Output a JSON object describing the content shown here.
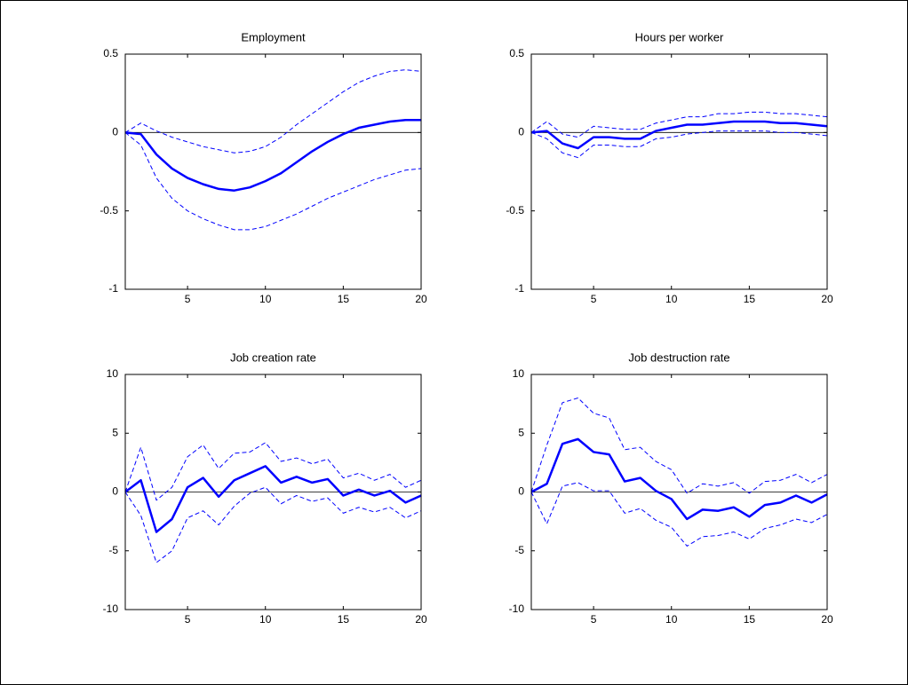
{
  "chart_data": [
    {
      "type": "line",
      "title": "Employment",
      "x": [
        1,
        2,
        3,
        4,
        5,
        6,
        7,
        8,
        9,
        10,
        11,
        12,
        13,
        14,
        15,
        16,
        17,
        18,
        19,
        20
      ],
      "xlim": [
        1,
        20
      ],
      "xticks": [
        5,
        10,
        15,
        20
      ],
      "ylim": [
        -1,
        0.5
      ],
      "yticks": [
        -1,
        -0.5,
        0,
        0.5
      ],
      "zero_line": true,
      "series": [
        {
          "color": "#0000ff",
          "linestyle": "solid",
          "values": [
            0,
            -0.01,
            -0.14,
            -0.23,
            -0.29,
            -0.33,
            -0.36,
            -0.37,
            -0.35,
            -0.31,
            -0.26,
            -0.19,
            -0.12,
            -0.06,
            -0.01,
            0.03,
            0.05,
            0.07,
            0.08,
            0.08
          ]
        },
        {
          "color": "#0000ff",
          "linestyle": "dashed",
          "values": [
            0,
            0.06,
            0.01,
            -0.03,
            -0.06,
            -0.09,
            -0.11,
            -0.13,
            -0.12,
            -0.09,
            -0.03,
            0.05,
            0.12,
            0.19,
            0.26,
            0.32,
            0.36,
            0.39,
            0.4,
            0.39
          ]
        },
        {
          "color": "#0000ff",
          "linestyle": "dashed",
          "values": [
            0,
            -0.08,
            -0.29,
            -0.42,
            -0.5,
            -0.55,
            -0.59,
            -0.62,
            -0.62,
            -0.6,
            -0.56,
            -0.52,
            -0.47,
            -0.42,
            -0.38,
            -0.34,
            -0.3,
            -0.27,
            -0.24,
            -0.23
          ]
        }
      ]
    },
    {
      "type": "line",
      "title": "Hours per worker",
      "x": [
        1,
        2,
        3,
        4,
        5,
        6,
        7,
        8,
        9,
        10,
        11,
        12,
        13,
        14,
        15,
        16,
        17,
        18,
        19,
        20
      ],
      "xlim": [
        1,
        20
      ],
      "xticks": [
        5,
        10,
        15,
        20
      ],
      "ylim": [
        -1,
        0.5
      ],
      "yticks": [
        -1,
        -0.5,
        0,
        0.5
      ],
      "zero_line": true,
      "series": [
        {
          "color": "#0000ff",
          "linestyle": "solid",
          "values": [
            0,
            0.01,
            -0.07,
            -0.1,
            -0.03,
            -0.03,
            -0.04,
            -0.04,
            0.01,
            0.03,
            0.05,
            0.05,
            0.06,
            0.07,
            0.07,
            0.07,
            0.06,
            0.06,
            0.05,
            0.04
          ]
        },
        {
          "color": "#0000ff",
          "linestyle": "dashed",
          "values": [
            0,
            0.07,
            -0.01,
            -0.03,
            0.04,
            0.03,
            0.02,
            0.02,
            0.06,
            0.08,
            0.1,
            0.1,
            0.12,
            0.12,
            0.13,
            0.13,
            0.12,
            0.12,
            0.11,
            0.1
          ]
        },
        {
          "color": "#0000ff",
          "linestyle": "dashed",
          "values": [
            0,
            -0.04,
            -0.13,
            -0.16,
            -0.08,
            -0.08,
            -0.09,
            -0.09,
            -0.04,
            -0.03,
            -0.01,
            0,
            0.01,
            0.01,
            0.01,
            0.01,
            0,
            0,
            -0.01,
            -0.02
          ]
        }
      ]
    },
    {
      "type": "line",
      "title": "Job creation rate",
      "x": [
        1,
        2,
        3,
        4,
        5,
        6,
        7,
        8,
        9,
        10,
        11,
        12,
        13,
        14,
        15,
        16,
        17,
        18,
        19,
        20
      ],
      "xlim": [
        1,
        20
      ],
      "xticks": [
        5,
        10,
        15,
        20
      ],
      "ylim": [
        -10,
        10
      ],
      "yticks": [
        -10,
        -5,
        0,
        5,
        10
      ],
      "zero_line": true,
      "series": [
        {
          "color": "#0000ff",
          "linestyle": "solid",
          "values": [
            0,
            1,
            -3.4,
            -2.3,
            0.4,
            1.2,
            -0.4,
            1,
            1.6,
            2.2,
            0.8,
            1.3,
            0.8,
            1.1,
            -0.3,
            0.2,
            -0.3,
            0.1,
            -0.9,
            -0.3
          ]
        },
        {
          "color": "#0000ff",
          "linestyle": "dashed",
          "values": [
            0,
            3.8,
            -0.7,
            0.4,
            3,
            4,
            2,
            3.3,
            3.4,
            4.2,
            2.6,
            2.9,
            2.4,
            2.8,
            1.2,
            1.6,
            1,
            1.5,
            0.4,
            1
          ]
        },
        {
          "color": "#0000ff",
          "linestyle": "dashed",
          "values": [
            0,
            -2,
            -6,
            -5,
            -2.2,
            -1.6,
            -2.8,
            -1.2,
            -0.1,
            0.4,
            -1,
            -0.3,
            -0.8,
            -0.5,
            -1.8,
            -1.3,
            -1.7,
            -1.3,
            -2.2,
            -1.6
          ]
        }
      ]
    },
    {
      "type": "line",
      "title": "Job destruction rate",
      "x": [
        1,
        2,
        3,
        4,
        5,
        6,
        7,
        8,
        9,
        10,
        11,
        12,
        13,
        14,
        15,
        16,
        17,
        18,
        19,
        20
      ],
      "xlim": [
        1,
        20
      ],
      "xticks": [
        5,
        10,
        15,
        20
      ],
      "ylim": [
        -10,
        10
      ],
      "yticks": [
        -10,
        -5,
        0,
        5,
        10
      ],
      "zero_line": true,
      "series": [
        {
          "color": "#0000ff",
          "linestyle": "solid",
          "values": [
            0,
            0.7,
            4.1,
            4.5,
            3.4,
            3.2,
            0.9,
            1.2,
            0.1,
            -0.6,
            -2.3,
            -1.5,
            -1.6,
            -1.3,
            -2.1,
            -1.1,
            -0.9,
            -0.3,
            -0.9,
            -0.2
          ]
        },
        {
          "color": "#0000ff",
          "linestyle": "dashed",
          "values": [
            0,
            4,
            7.6,
            8,
            6.7,
            6.3,
            3.6,
            3.8,
            2.6,
            1.9,
            -0.1,
            0.7,
            0.5,
            0.8,
            -0.1,
            0.9,
            1,
            1.5,
            0.8,
            1.5
          ]
        },
        {
          "color": "#0000ff",
          "linestyle": "dashed",
          "values": [
            0,
            -2.7,
            0.5,
            0.8,
            0.1,
            0.1,
            -1.8,
            -1.4,
            -2.4,
            -3,
            -4.6,
            -3.8,
            -3.7,
            -3.4,
            -4,
            -3.1,
            -2.8,
            -2.3,
            -2.6,
            -1.9
          ]
        }
      ]
    }
  ]
}
